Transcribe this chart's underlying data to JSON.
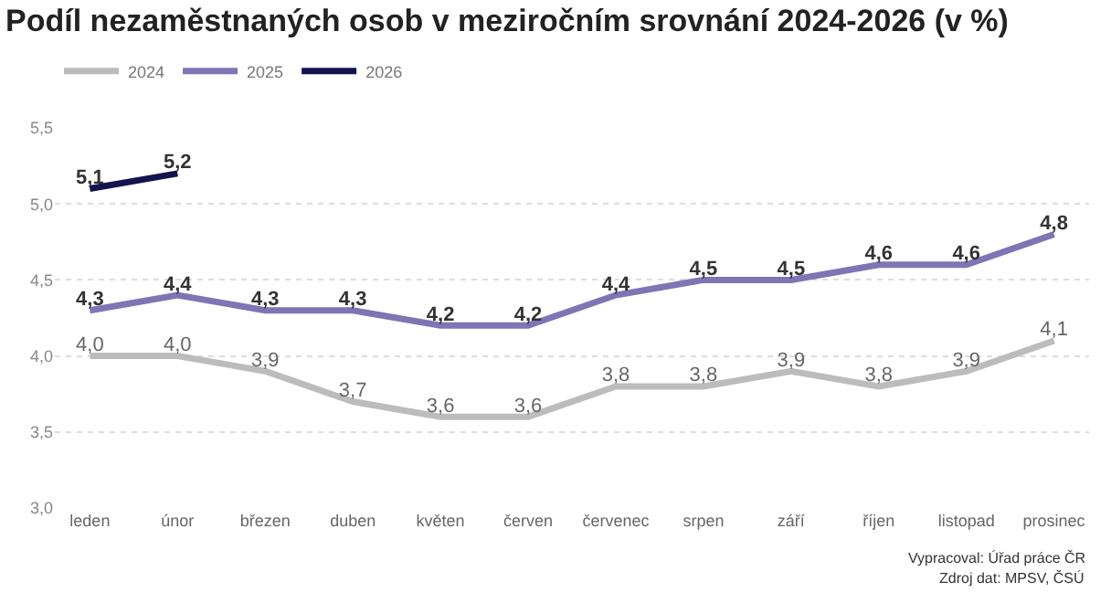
{
  "chart_data": {
    "type": "line",
    "title": "Podíl nezaměstnaných osob v meziročním srovnání 2024-2026 (v %)",
    "categories": [
      "leden",
      "únor",
      "březen",
      "duben",
      "květen",
      "červen",
      "červenec",
      "srpen",
      "září",
      "říjen",
      "listopad",
      "prosinec"
    ],
    "series": [
      {
        "name": "2024",
        "color": "#bcbcbc",
        "values": [
          4.0,
          4.0,
          3.9,
          3.7,
          3.6,
          3.6,
          3.8,
          3.8,
          3.9,
          3.8,
          3.9,
          4.1
        ],
        "value_labels": [
          "4,0",
          "4,0",
          "3,9",
          "3,7",
          "3,6",
          "3,6",
          "3,8",
          "3,8",
          "3,9",
          "3,8",
          "3,9",
          "4,1"
        ]
      },
      {
        "name": "2025",
        "color": "#7f74b4",
        "values": [
          4.3,
          4.4,
          4.3,
          4.3,
          4.2,
          4.2,
          4.4,
          4.5,
          4.5,
          4.6,
          4.6,
          4.8
        ],
        "value_labels": [
          "4,3",
          "4,4",
          "4,3",
          "4,3",
          "4,2",
          "4,2",
          "4,4",
          "4,5",
          "4,5",
          "4,6",
          "4,6",
          "4,8"
        ]
      },
      {
        "name": "2026",
        "color": "#141450",
        "values": [
          5.1,
          5.2,
          null,
          null,
          null,
          null,
          null,
          null,
          null,
          null,
          null,
          null
        ],
        "value_labels": [
          "5,1",
          "5,2",
          null,
          null,
          null,
          null,
          null,
          null,
          null,
          null,
          null,
          null
        ]
      }
    ],
    "ylim": [
      3.0,
      5.5
    ],
    "yticks": [
      {
        "value": 3.0,
        "label": "3,0"
      },
      {
        "value": 3.5,
        "label": "3,5"
      },
      {
        "value": 4.0,
        "label": "4,0"
      },
      {
        "value": 4.5,
        "label": "4,5"
      },
      {
        "value": 5.0,
        "label": "5,0"
      },
      {
        "value": 5.5,
        "label": "5,5"
      }
    ],
    "grid": "y",
    "legend": "top left",
    "marker": "none",
    "line_style": "solid",
    "annotations": [
      "Vypracoval: Úřad práce ČR",
      "Zdroj dat: MPSV, ČSÚ"
    ]
  }
}
